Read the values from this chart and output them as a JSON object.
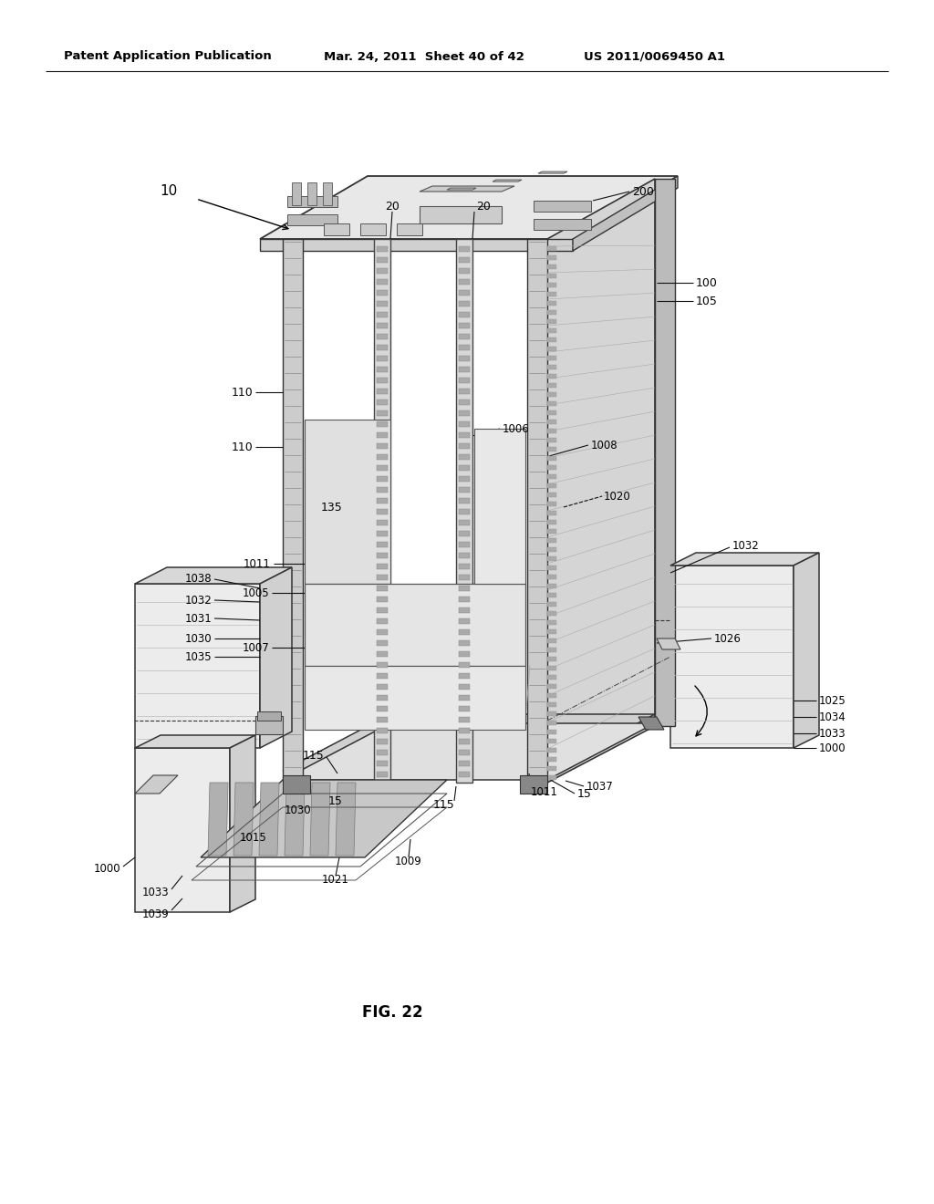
{
  "background_color": "#ffffff",
  "header_text": "Patent Application Publication",
  "header_date": "Mar. 24, 2011  Sheet 40 of 42",
  "header_patent": "US 2011/0069450 A1",
  "figure_label": "FIG. 22"
}
